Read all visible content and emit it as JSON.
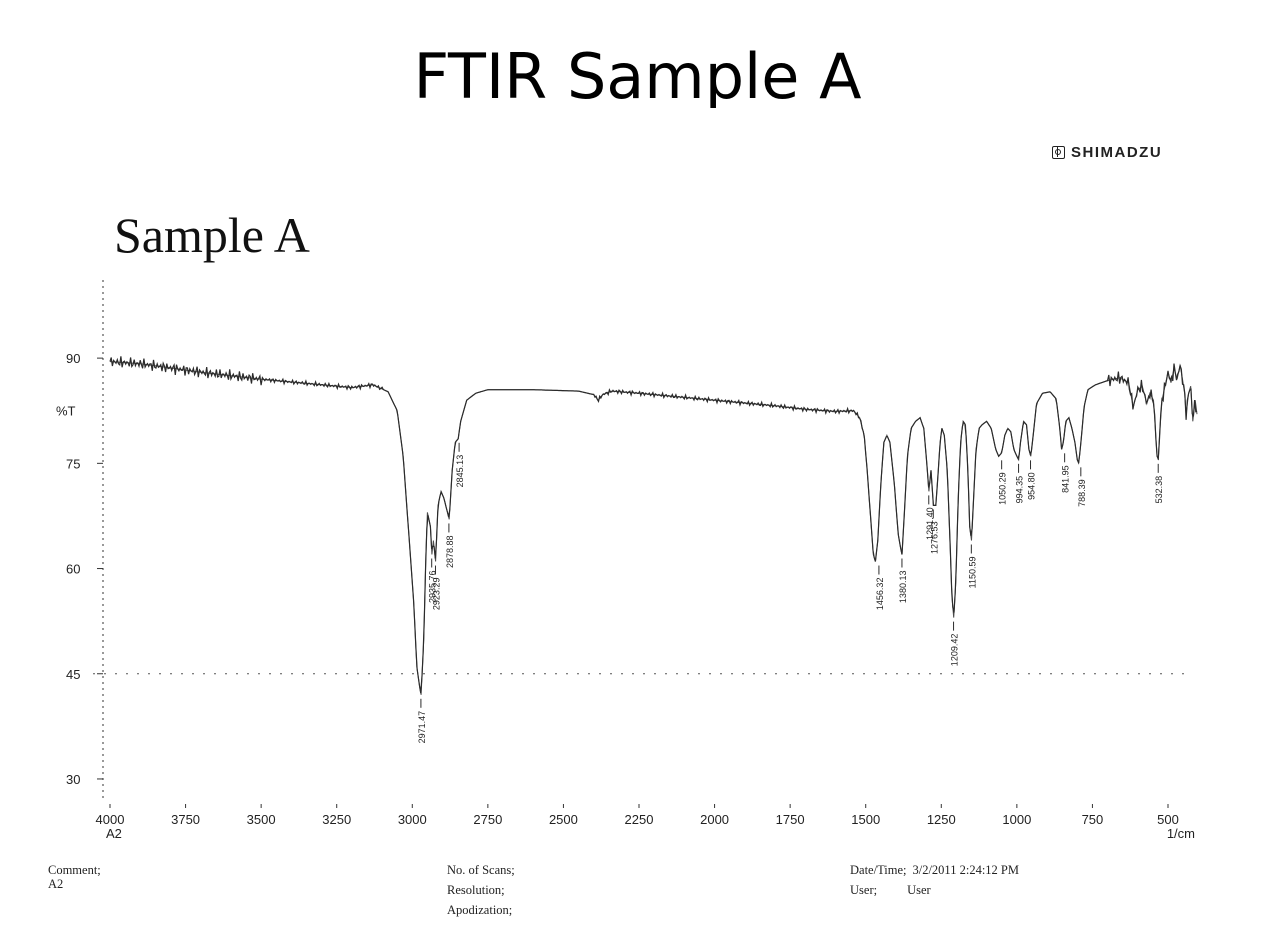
{
  "page": {
    "title": "FTIR Sample A",
    "brand": "SHIMADZU",
    "sample_label": "Sample A"
  },
  "footer": {
    "comment_label": "Comment;",
    "comment_value": "A2",
    "scans_label": "No. of Scans;",
    "resolution_label": "Resolution;",
    "apodization_label": "Apodization;",
    "datetime_label": "Date/Time;",
    "datetime_value": "3/2/2011 2:24:12 PM",
    "user_label": "User;",
    "user_value": "User"
  },
  "chart_data": {
    "type": "line",
    "xlabel": "1/cm",
    "ylabel": "%T",
    "x_corner_label": "A2",
    "x_reversed": true,
    "xlim": [
      4000,
      400
    ],
    "ylim": [
      27,
      99
    ],
    "xticks": [
      4000,
      3750,
      3500,
      3250,
      3000,
      2750,
      2500,
      2250,
      2000,
      1750,
      1500,
      1250,
      1000,
      750,
      500
    ],
    "yticks": [
      90,
      75,
      60,
      45,
      30
    ],
    "dashed_reference_y": 45,
    "noisy_segments": [
      [
        4000,
        3500,
        0.9
      ],
      [
        3500,
        3100,
        0.35
      ],
      [
        2400,
        1500,
        0.35
      ],
      [
        700,
        400,
        1.0
      ]
    ],
    "series": [
      {
        "points": [
          [
            4000,
            89.5
          ],
          [
            3900,
            89.2
          ],
          [
            3800,
            88.6
          ],
          [
            3700,
            88.0
          ],
          [
            3600,
            87.5
          ],
          [
            3500,
            87.0
          ],
          [
            3400,
            86.6
          ],
          [
            3300,
            86.2
          ],
          [
            3200,
            85.8
          ],
          [
            3130,
            86.2
          ],
          [
            3080,
            85.2
          ],
          [
            3050,
            82.5
          ],
          [
            3030,
            76.0
          ],
          [
            3010,
            64.0
          ],
          [
            2995,
            55.0
          ],
          [
            2985,
            46.0
          ],
          [
            2975,
            43.0
          ],
          [
            2971,
            42.0
          ],
          [
            2962,
            50.0
          ],
          [
            2955,
            62.0
          ],
          [
            2950,
            68.0
          ],
          [
            2940,
            66.0
          ],
          [
            2935,
            62.0
          ],
          [
            2930,
            64.0
          ],
          [
            2923,
            61.0
          ],
          [
            2915,
            69.0
          ],
          [
            2905,
            71.0
          ],
          [
            2895,
            70.0
          ],
          [
            2878,
            67.0
          ],
          [
            2868,
            74.0
          ],
          [
            2858,
            78.0
          ],
          [
            2848,
            78.5
          ],
          [
            2840,
            81.0
          ],
          [
            2820,
            84.0
          ],
          [
            2790,
            85.0
          ],
          [
            2750,
            85.5
          ],
          [
            2600,
            85.5
          ],
          [
            2450,
            85.3
          ],
          [
            2400,
            84.8
          ],
          [
            2385,
            84.0
          ],
          [
            2370,
            84.8
          ],
          [
            2340,
            85.3
          ],
          [
            2250,
            85.0
          ],
          [
            2100,
            84.4
          ],
          [
            1950,
            83.8
          ],
          [
            1800,
            83.2
          ],
          [
            1700,
            82.7
          ],
          [
            1600,
            82.4
          ],
          [
            1540,
            82.5
          ],
          [
            1520,
            81.5
          ],
          [
            1505,
            79.0
          ],
          [
            1495,
            74.0
          ],
          [
            1485,
            68.0
          ],
          [
            1475,
            62.0
          ],
          [
            1468,
            61.0
          ],
          [
            1460,
            64.0
          ],
          [
            1450,
            72.0
          ],
          [
            1440,
            78.0
          ],
          [
            1430,
            79.0
          ],
          [
            1420,
            78.0
          ],
          [
            1405,
            72.0
          ],
          [
            1393,
            65.0
          ],
          [
            1385,
            63.0
          ],
          [
            1380,
            62.0
          ],
          [
            1372,
            68.0
          ],
          [
            1362,
            76.0
          ],
          [
            1350,
            80.0
          ],
          [
            1335,
            81.0
          ],
          [
            1320,
            81.5
          ],
          [
            1308,
            80.0
          ],
          [
            1298,
            75.0
          ],
          [
            1291,
            71.0
          ],
          [
            1284,
            74.0
          ],
          [
            1276,
            69.0
          ],
          [
            1268,
            69.0
          ],
          [
            1260,
            74.0
          ],
          [
            1254,
            78.0
          ],
          [
            1248,
            80.0
          ],
          [
            1240,
            79.0
          ],
          [
            1230,
            74.0
          ],
          [
            1222,
            65.0
          ],
          [
            1215,
            56.0
          ],
          [
            1209,
            53.0
          ],
          [
            1202,
            58.0
          ],
          [
            1194,
            70.0
          ],
          [
            1186,
            78.0
          ],
          [
            1178,
            81.0
          ],
          [
            1170,
            80.5
          ],
          [
            1162,
            74.0
          ],
          [
            1156,
            66.0
          ],
          [
            1150,
            64.0
          ],
          [
            1143,
            70.0
          ],
          [
            1135,
            77.0
          ],
          [
            1125,
            80.0
          ],
          [
            1115,
            80.5
          ],
          [
            1100,
            81.0
          ],
          [
            1085,
            80.0
          ],
          [
            1070,
            77.0
          ],
          [
            1060,
            76.0
          ],
          [
            1050,
            76.5
          ],
          [
            1040,
            79.0
          ],
          [
            1030,
            80.0
          ],
          [
            1020,
            79.5
          ],
          [
            1010,
            77.0
          ],
          [
            1000,
            76.0
          ],
          [
            994,
            75.5
          ],
          [
            988,
            78.0
          ],
          [
            978,
            81.0
          ],
          [
            968,
            80.5
          ],
          [
            960,
            77.0
          ],
          [
            954,
            76.0
          ],
          [
            946,
            79.0
          ],
          [
            935,
            83.5
          ],
          [
            915,
            85.0
          ],
          [
            890,
            85.2
          ],
          [
            870,
            84.2
          ],
          [
            858,
            80.0
          ],
          [
            852,
            77.0
          ],
          [
            846,
            78.0
          ],
          [
            838,
            81.0
          ],
          [
            828,
            81.5
          ],
          [
            818,
            80.0
          ],
          [
            808,
            78.0
          ],
          [
            800,
            75.5
          ],
          [
            795,
            75.0
          ],
          [
            788,
            78.0
          ],
          [
            778,
            83.0
          ],
          [
            765,
            85.5
          ],
          [
            740,
            86.2
          ],
          [
            700,
            86.8
          ],
          [
            660,
            87.2
          ],
          [
            630,
            86.5
          ],
          [
            615,
            83.0
          ],
          [
            600,
            85.5
          ],
          [
            585,
            86.0
          ],
          [
            570,
            83.5
          ],
          [
            560,
            85.0
          ],
          [
            548,
            84.0
          ],
          [
            542,
            80.0
          ],
          [
            536,
            76.0
          ],
          [
            532,
            75.5
          ],
          [
            528,
            79.0
          ],
          [
            520,
            84.0
          ],
          [
            510,
            86.0
          ],
          [
            500,
            88.0
          ],
          [
            490,
            86.5
          ],
          [
            480,
            88.5
          ],
          [
            470,
            87.0
          ],
          [
            460,
            89.0
          ],
          [
            452,
            87.0
          ],
          [
            445,
            85.0
          ],
          [
            440,
            82.0
          ],
          [
            432,
            85.0
          ],
          [
            425,
            86.0
          ],
          [
            418,
            81.0
          ],
          [
            410,
            84.0
          ],
          [
            404,
            82.0
          ]
        ]
      }
    ],
    "peak_labels": [
      {
        "x": 2971.47,
        "y": 42.0,
        "label": "2971.47"
      },
      {
        "x": 2935.76,
        "y": 62.0,
        "label": "2935.76"
      },
      {
        "x": 2923.29,
        "y": 61.0,
        "label": "2923.29"
      },
      {
        "x": 2878.88,
        "y": 67.0,
        "label": "2878.88"
      },
      {
        "x": 2845.13,
        "y": 78.5,
        "label": "2845.13"
      },
      {
        "x": 1456.32,
        "y": 61.0,
        "label": "1456.32"
      },
      {
        "x": 1380.13,
        "y": 62.0,
        "label": "1380.13"
      },
      {
        "x": 1291.4,
        "y": 71.0,
        "label": "1291.40"
      },
      {
        "x": 1276.53,
        "y": 69.0,
        "label": "1276.53"
      },
      {
        "x": 1209.42,
        "y": 53.0,
        "label": "1209.42"
      },
      {
        "x": 1150.59,
        "y": 64.0,
        "label": "1150.59"
      },
      {
        "x": 1050.29,
        "y": 76.0,
        "label": "1050.29"
      },
      {
        "x": 994.35,
        "y": 75.5,
        "label": "994.35"
      },
      {
        "x": 954.8,
        "y": 76.0,
        "label": "954.80"
      },
      {
        "x": 841.95,
        "y": 77.0,
        "label": "841.95"
      },
      {
        "x": 788.39,
        "y": 75.0,
        "label": "788.39"
      },
      {
        "x": 532.38,
        "y": 75.5,
        "label": "532.38"
      }
    ],
    "colors": {
      "line": "#2b2b2b",
      "axis": "#333333",
      "text": "#222222"
    }
  }
}
